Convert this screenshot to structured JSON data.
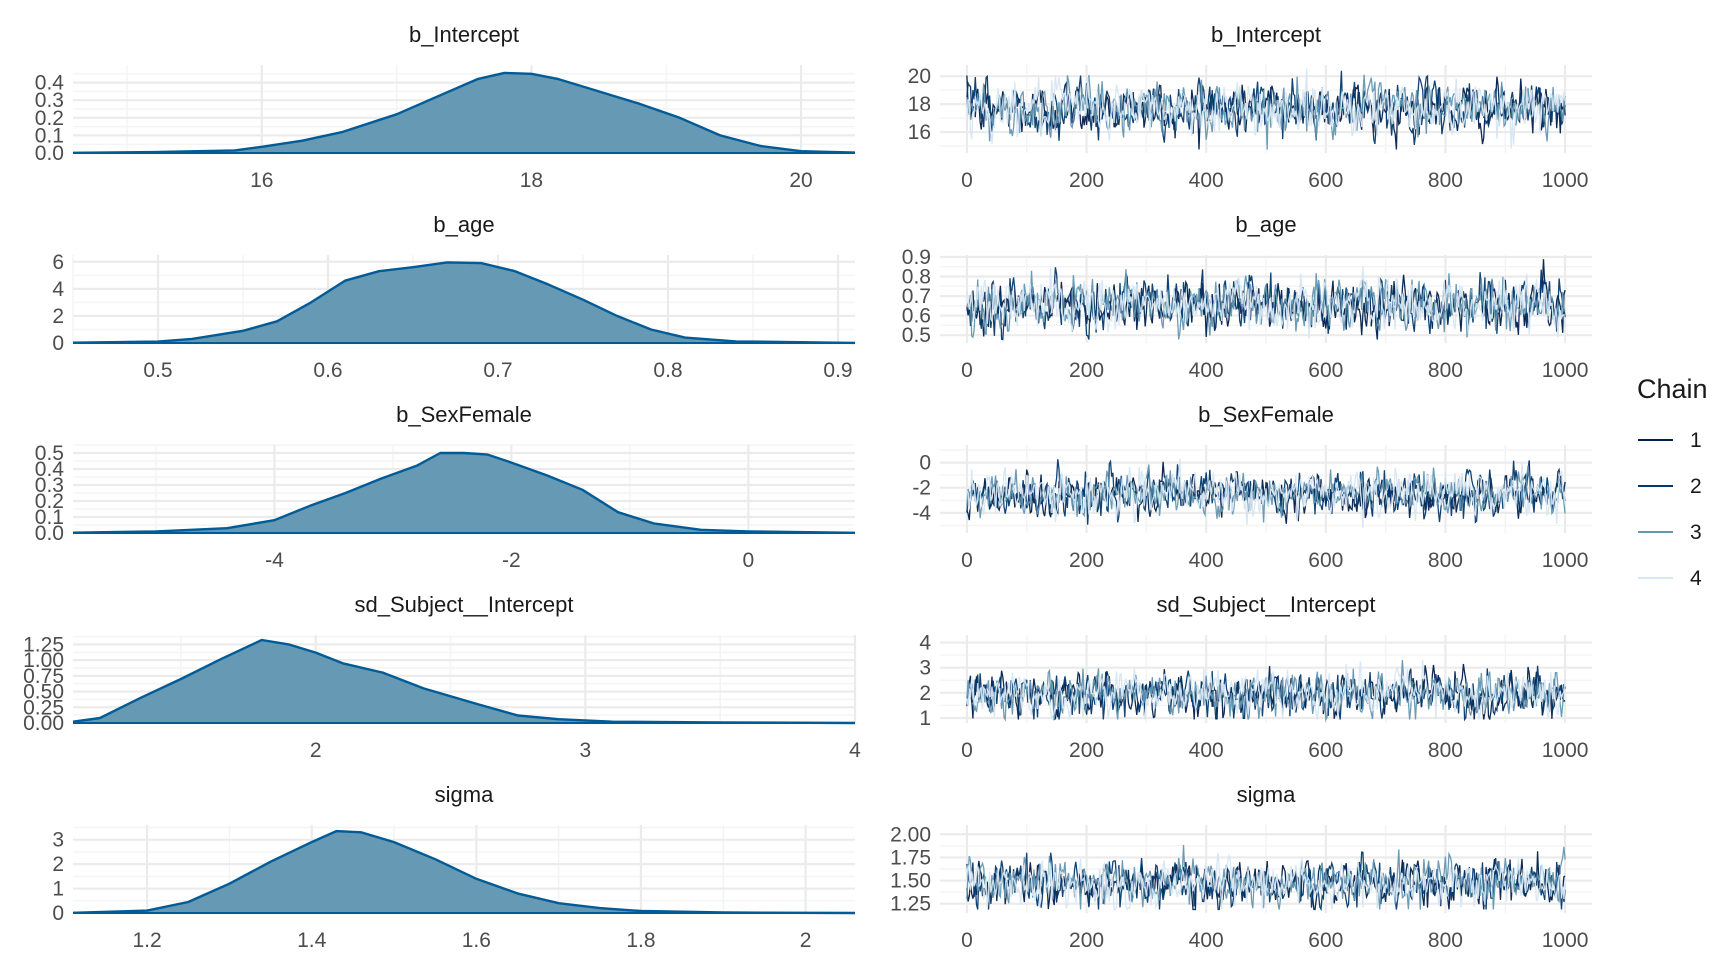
{
  "colors": {
    "density_fill": "#6699b4",
    "density_line": "#005b96",
    "grid_major": "#ebebeb",
    "grid_minor": "#f4f4f4",
    "chains": [
      "#011f4b",
      "#03396c",
      "#6497b1",
      "#d6e6f2"
    ]
  },
  "legend": {
    "title": "Chain",
    "items": [
      "1",
      "2",
      "3",
      "4"
    ]
  },
  "chart_data": [
    {
      "type": "area",
      "title": "b_Intercept",
      "xlim": [
        14.6,
        20.4
      ],
      "ylim": [
        0,
        0.5
      ],
      "xticks": [
        16,
        18,
        20
      ],
      "yticks": [
        0.0,
        0.1,
        0.2,
        0.3,
        0.4
      ],
      "ytick_labels": [
        "0.0",
        "0.1",
        "0.2",
        "0.3",
        "0.4"
      ],
      "density": [
        [
          14.6,
          0.001
        ],
        [
          15.2,
          0.005
        ],
        [
          15.8,
          0.015
        ],
        [
          16.0,
          0.035
        ],
        [
          16.3,
          0.07
        ],
        [
          16.6,
          0.12
        ],
        [
          17.0,
          0.22
        ],
        [
          17.3,
          0.32
        ],
        [
          17.6,
          0.42
        ],
        [
          17.8,
          0.455
        ],
        [
          18.0,
          0.45
        ],
        [
          18.2,
          0.42
        ],
        [
          18.5,
          0.35
        ],
        [
          18.8,
          0.28
        ],
        [
          19.1,
          0.2
        ],
        [
          19.4,
          0.1
        ],
        [
          19.7,
          0.04
        ],
        [
          20.0,
          0.01
        ],
        [
          20.4,
          0.002
        ]
      ]
    },
    {
      "type": "line",
      "title": "b_Intercept",
      "xlim": [
        -45,
        1045
      ],
      "ylim": [
        14.5,
        20.8
      ],
      "xticks": [
        0,
        200,
        400,
        600,
        800,
        1000
      ],
      "yticks": [
        16,
        18,
        20
      ],
      "ytick_labels": [
        "16",
        "18",
        "20"
      ],
      "trace": {
        "mean": 17.7,
        "sd": 0.9
      }
    },
    {
      "type": "area",
      "title": "b_age",
      "xlim": [
        0.45,
        0.91
      ],
      "ylim": [
        0,
        6.5
      ],
      "xticks": [
        0.5,
        0.6,
        0.7,
        0.8,
        0.9
      ],
      "yticks": [
        0,
        2,
        4,
        6
      ],
      "ytick_labels": [
        "0",
        "2",
        "4",
        "6"
      ],
      "density": [
        [
          0.45,
          0.02
        ],
        [
          0.5,
          0.1
        ],
        [
          0.52,
          0.3
        ],
        [
          0.55,
          0.9
        ],
        [
          0.57,
          1.6
        ],
        [
          0.59,
          3.0
        ],
        [
          0.61,
          4.6
        ],
        [
          0.63,
          5.3
        ],
        [
          0.65,
          5.6
        ],
        [
          0.67,
          5.95
        ],
        [
          0.69,
          5.9
        ],
        [
          0.71,
          5.3
        ],
        [
          0.73,
          4.3
        ],
        [
          0.75,
          3.2
        ],
        [
          0.77,
          2.0
        ],
        [
          0.79,
          1.0
        ],
        [
          0.81,
          0.4
        ],
        [
          0.84,
          0.12
        ],
        [
          0.91,
          0.01
        ]
      ]
    },
    {
      "type": "line",
      "title": "b_age",
      "xlim": [
        -45,
        1045
      ],
      "ylim": [
        0.46,
        0.91
      ],
      "xticks": [
        0,
        200,
        400,
        600,
        800,
        1000
      ],
      "yticks": [
        0.5,
        0.6,
        0.7,
        0.8,
        0.9
      ],
      "ytick_labels": [
        "0.5",
        "0.6",
        "0.7",
        "0.8",
        "0.9"
      ],
      "trace": {
        "mean": 0.66,
        "sd": 0.065
      }
    },
    {
      "type": "area",
      "title": "b_SexFemale",
      "xlim": [
        -5.7,
        0.9
      ],
      "ylim": [
        0,
        0.55
      ],
      "xticks": [
        -4,
        -2,
        0
      ],
      "yticks": [
        0.0,
        0.1,
        0.2,
        0.3,
        0.4,
        0.5
      ],
      "ytick_labels": [
        "0.0",
        "0.1",
        "0.2",
        "0.3",
        "0.4",
        "0.5"
      ],
      "density": [
        [
          -5.7,
          0.002
        ],
        [
          -5.0,
          0.01
        ],
        [
          -4.4,
          0.03
        ],
        [
          -4.0,
          0.08
        ],
        [
          -3.7,
          0.17
        ],
        [
          -3.4,
          0.25
        ],
        [
          -3.1,
          0.34
        ],
        [
          -2.8,
          0.42
        ],
        [
          -2.6,
          0.5
        ],
        [
          -2.4,
          0.5
        ],
        [
          -2.2,
          0.49
        ],
        [
          -2.0,
          0.44
        ],
        [
          -1.7,
          0.36
        ],
        [
          -1.4,
          0.27
        ],
        [
          -1.1,
          0.13
        ],
        [
          -0.8,
          0.06
        ],
        [
          -0.4,
          0.02
        ],
        [
          0.0,
          0.01
        ],
        [
          0.9,
          0.001
        ]
      ]
    },
    {
      "type": "line",
      "title": "b_SexFemale",
      "xlim": [
        -45,
        1045
      ],
      "ylim": [
        -5.6,
        1.4
      ],
      "xticks": [
        0,
        200,
        400,
        600,
        800,
        1000
      ],
      "yticks": [
        -4,
        -2,
        0
      ],
      "ytick_labels": [
        "-4",
        "-2",
        "0"
      ],
      "trace": {
        "mean": -2.5,
        "sd": 0.85
      }
    },
    {
      "type": "area",
      "title": "sd_Subject__Intercept",
      "xlim": [
        1.1,
        4.0
      ],
      "ylim": [
        0,
        1.4
      ],
      "xticks": [
        2,
        3,
        4
      ],
      "yticks": [
        0.0,
        0.25,
        0.5,
        0.75,
        1.0,
        1.25
      ],
      "ytick_labels": [
        "0.00",
        "0.25",
        "0.50",
        "0.75",
        "1.00",
        "1.25"
      ],
      "density": [
        [
          1.1,
          0.02
        ],
        [
          1.2,
          0.08
        ],
        [
          1.35,
          0.4
        ],
        [
          1.5,
          0.7
        ],
        [
          1.65,
          1.02
        ],
        [
          1.8,
          1.32
        ],
        [
          1.9,
          1.25
        ],
        [
          2.0,
          1.12
        ],
        [
          2.1,
          0.95
        ],
        [
          2.25,
          0.8
        ],
        [
          2.4,
          0.55
        ],
        [
          2.6,
          0.3
        ],
        [
          2.75,
          0.12
        ],
        [
          2.9,
          0.06
        ],
        [
          3.1,
          0.02
        ],
        [
          3.5,
          0.01
        ],
        [
          4.0,
          0.0
        ]
      ]
    },
    {
      "type": "line",
      "title": "sd_Subject__Intercept",
      "xlim": [
        -45,
        1045
      ],
      "ylim": [
        0.8,
        4.3
      ],
      "xticks": [
        0,
        200,
        400,
        600,
        800,
        1000
      ],
      "yticks": [
        1,
        2,
        3,
        4
      ],
      "ytick_labels": [
        "1",
        "2",
        "3",
        "4"
      ],
      "trace": {
        "mean": 1.95,
        "sd": 0.42
      }
    },
    {
      "type": "area",
      "title": "sigma",
      "xlim": [
        1.11,
        2.06
      ],
      "ylim": [
        0,
        3.6
      ],
      "xticks": [
        1.2,
        1.4,
        1.6,
        1.8,
        2.0
      ],
      "yticks": [
        0,
        1,
        2,
        3
      ],
      "ytick_labels": [
        "0",
        "1",
        "2",
        "3"
      ],
      "density": [
        [
          1.11,
          0.01
        ],
        [
          1.2,
          0.1
        ],
        [
          1.25,
          0.45
        ],
        [
          1.3,
          1.2
        ],
        [
          1.35,
          2.1
        ],
        [
          1.4,
          2.9
        ],
        [
          1.43,
          3.35
        ],
        [
          1.46,
          3.3
        ],
        [
          1.5,
          2.9
        ],
        [
          1.55,
          2.2
        ],
        [
          1.6,
          1.4
        ],
        [
          1.65,
          0.8
        ],
        [
          1.7,
          0.4
        ],
        [
          1.75,
          0.2
        ],
        [
          1.8,
          0.08
        ],
        [
          1.9,
          0.02
        ],
        [
          2.06,
          0.0
        ]
      ]
    },
    {
      "type": "line",
      "title": "sigma",
      "xlim": [
        -45,
        1045
      ],
      "ylim": [
        1.15,
        2.1
      ],
      "xticks": [
        0,
        200,
        400,
        600,
        800,
        1000
      ],
      "yticks": [
        1.25,
        1.5,
        1.75,
        2.0
      ],
      "ytick_labels": [
        "1.25",
        "1.50",
        "1.75",
        "2.00"
      ],
      "trace": {
        "mean": 1.48,
        "sd": 0.12
      }
    }
  ]
}
